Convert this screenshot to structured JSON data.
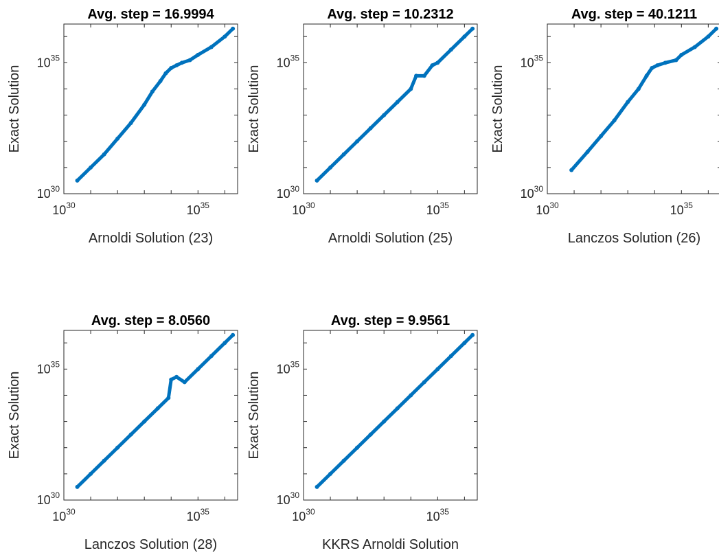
{
  "chart_data": [
    {
      "type": "scatter",
      "title": "Avg. step = 16.9994",
      "xlabel": "Arnoldi Solution (23)",
      "ylabel": "Exact Solution",
      "xscale": "log",
      "yscale": "log",
      "xlim": [
        1e+30,
        3e+36
      ],
      "ylim": [
        1e+30,
        3e+36
      ],
      "xticks": [
        "30",
        "35"
      ],
      "yticks": [
        "30",
        "35"
      ],
      "tick_base": "10",
      "grid": false,
      "color": "#0072bd",
      "points_log10": [
        [
          30.5,
          30.5
        ],
        [
          31.0,
          31.0
        ],
        [
          31.5,
          31.5
        ],
        [
          32.0,
          32.1
        ],
        [
          32.5,
          32.7
        ],
        [
          33.0,
          33.4
        ],
        [
          33.3,
          33.9
        ],
        [
          33.6,
          34.3
        ],
        [
          33.8,
          34.6
        ],
        [
          34.0,
          34.8
        ],
        [
          34.2,
          34.9
        ],
        [
          34.4,
          35.0
        ],
        [
          34.7,
          35.1
        ],
        [
          35.0,
          35.3
        ],
        [
          35.5,
          35.6
        ],
        [
          36.0,
          36.0
        ],
        [
          36.3,
          36.3
        ]
      ]
    },
    {
      "type": "scatter",
      "title": "Avg. step = 10.2312",
      "xlabel": "Arnoldi Solution (25)",
      "ylabel": "Exact Solution",
      "xscale": "log",
      "yscale": "log",
      "xlim": [
        1e+30,
        3e+36
      ],
      "ylim": [
        1e+30,
        3e+36
      ],
      "xticks": [
        "30",
        "35"
      ],
      "yticks": [
        "30",
        "35"
      ],
      "tick_base": "10",
      "grid": false,
      "color": "#0072bd",
      "points_log10": [
        [
          30.5,
          30.5
        ],
        [
          31.0,
          31.0
        ],
        [
          31.5,
          31.5
        ],
        [
          32.0,
          32.0
        ],
        [
          32.5,
          32.5
        ],
        [
          33.0,
          33.0
        ],
        [
          33.5,
          33.5
        ],
        [
          34.0,
          34.0
        ],
        [
          34.2,
          34.5
        ],
        [
          34.5,
          34.5
        ],
        [
          34.8,
          34.9
        ],
        [
          35.0,
          35.0
        ],
        [
          35.5,
          35.5
        ],
        [
          36.0,
          36.0
        ],
        [
          36.3,
          36.3
        ]
      ]
    },
    {
      "type": "scatter",
      "title": "Avg. step = 40.1211",
      "xlabel": "Lanczos Solution (26)",
      "ylabel": "Exact Solution",
      "xscale": "log",
      "yscale": "log",
      "xlim": [
        1e+30,
        3e+36
      ],
      "ylim": [
        1e+30,
        3e+36
      ],
      "xticks": [
        "30",
        "35"
      ],
      "yticks": [
        "30",
        "35"
      ],
      "tick_base": "10",
      "grid": false,
      "color": "#0072bd",
      "points_log10": [
        [
          30.9,
          30.9
        ],
        [
          31.5,
          31.6
        ],
        [
          32.0,
          32.2
        ],
        [
          32.5,
          32.8
        ],
        [
          33.0,
          33.5
        ],
        [
          33.4,
          34.0
        ],
        [
          33.7,
          34.5
        ],
        [
          33.9,
          34.8
        ],
        [
          34.1,
          34.9
        ],
        [
          34.4,
          35.0
        ],
        [
          34.8,
          35.1
        ],
        [
          35.0,
          35.3
        ],
        [
          35.5,
          35.6
        ],
        [
          36.0,
          36.0
        ],
        [
          36.3,
          36.3
        ]
      ]
    },
    {
      "type": "scatter",
      "title": "Avg. step = 8.0560",
      "xlabel": "Lanczos Solution (28)",
      "ylabel": "Exact Solution",
      "xscale": "log",
      "yscale": "log",
      "xlim": [
        1e+30,
        3e+36
      ],
      "ylim": [
        1e+30,
        3e+36
      ],
      "xticks": [
        "30",
        "35"
      ],
      "yticks": [
        "30",
        "35"
      ],
      "tick_base": "10",
      "grid": false,
      "color": "#0072bd",
      "points_log10": [
        [
          30.5,
          30.5
        ],
        [
          31.0,
          31.0
        ],
        [
          31.5,
          31.5
        ],
        [
          32.0,
          32.0
        ],
        [
          32.5,
          32.5
        ],
        [
          33.0,
          33.0
        ],
        [
          33.5,
          33.5
        ],
        [
          33.9,
          33.9
        ],
        [
          34.0,
          34.6
        ],
        [
          34.2,
          34.7
        ],
        [
          34.5,
          34.5
        ],
        [
          35.0,
          35.0
        ],
        [
          35.5,
          35.5
        ],
        [
          36.0,
          36.0
        ],
        [
          36.3,
          36.3
        ]
      ]
    },
    {
      "type": "scatter",
      "title": "Avg. step = 9.9561",
      "xlabel": "KKRS Arnoldi Solution",
      "ylabel": "Exact Solution",
      "xscale": "log",
      "yscale": "log",
      "xlim": [
        1e+30,
        3e+36
      ],
      "ylim": [
        1e+30,
        3e+36
      ],
      "xticks": [
        "30",
        "35"
      ],
      "yticks": [
        "30",
        "35"
      ],
      "tick_base": "10",
      "grid": false,
      "color": "#0072bd",
      "points_log10": [
        [
          30.5,
          30.5
        ],
        [
          31.0,
          31.0
        ],
        [
          31.5,
          31.5
        ],
        [
          32.0,
          32.0
        ],
        [
          32.5,
          32.5
        ],
        [
          33.0,
          33.0
        ],
        [
          33.5,
          33.5
        ],
        [
          34.0,
          34.0
        ],
        [
          34.5,
          34.5
        ],
        [
          35.0,
          35.0
        ],
        [
          35.5,
          35.5
        ],
        [
          36.0,
          36.0
        ],
        [
          36.3,
          36.3
        ]
      ]
    }
  ]
}
